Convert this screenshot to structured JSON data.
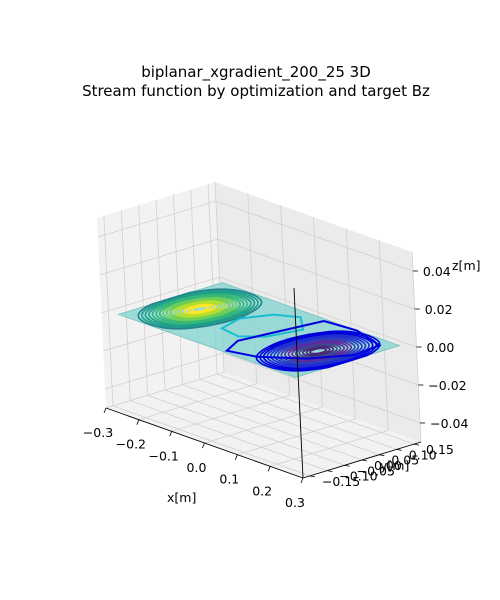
{
  "chart_data": {
    "type": "contour",
    "title_line1": "biplanar_xgradient_200_25 3D",
    "title_line2": "Stream function by optimization and target Bz",
    "xlabel": "x[m]",
    "ylabel": "y[m]",
    "zlabel": "z[m]",
    "xlim": [
      -0.3,
      0.3
    ],
    "ylim": [
      -0.17,
      0.17
    ],
    "zlim": [
      -0.05,
      0.05
    ],
    "x_ticks": [
      "−0.3",
      "−0.2",
      "−0.1",
      "0.0",
      "0.1",
      "0.2",
      "0.3"
    ],
    "y_ticks": [
      "−0.15",
      "−0.10",
      "−0.05",
      "0.00",
      "0.05",
      "0.10",
      "0.15"
    ],
    "z_ticks": [
      "−0.04",
      "−0.02",
      "0.00",
      "0.02",
      "0.04"
    ],
    "plane_z": 0.0,
    "surface_color": "#7fd3cf",
    "stream_function_peaks": [
      {
        "sign": "positive",
        "x": -0.18,
        "y": 0.0,
        "colormap_end": "#fde725"
      },
      {
        "sign": "negative",
        "x": 0.18,
        "y": 0.0,
        "colormap_end": "#30126e"
      }
    ],
    "contour_colors": [
      "#fde725",
      "#b5de2b",
      "#6ece58",
      "#35b779",
      "#1f9e89",
      "#26828e",
      "#31688e",
      "#3e4989",
      "#482878",
      "#440154",
      "#0000dd"
    ]
  }
}
